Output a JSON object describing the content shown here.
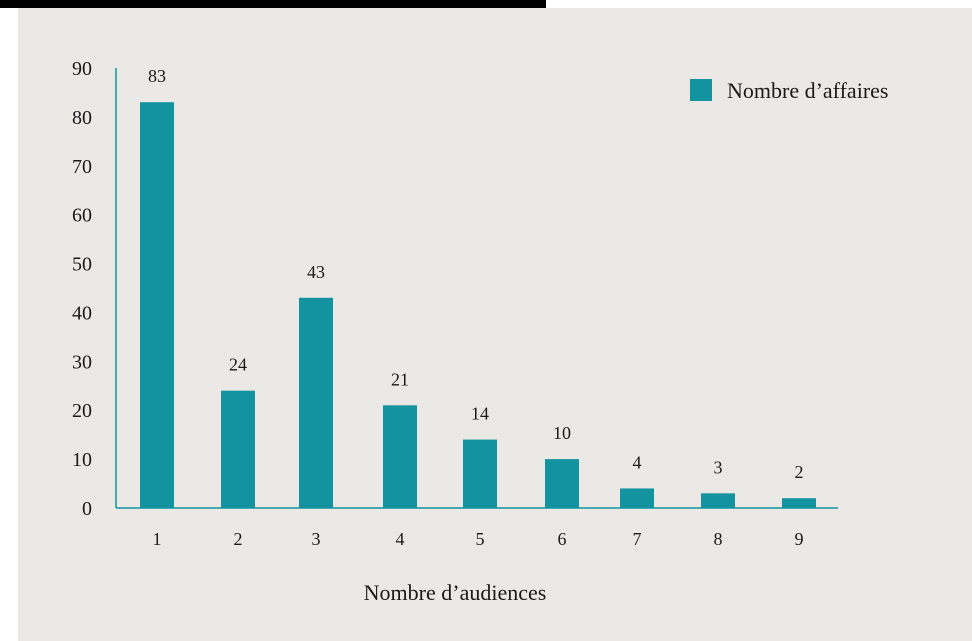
{
  "colors": {
    "background": "#ebe9e6",
    "bar": "#13929f",
    "axis": "#13929f",
    "topbar": "#000000"
  },
  "chart_data": {
    "type": "bar",
    "categories": [
      "1",
      "2",
      "3",
      "4",
      "5",
      "6",
      "7",
      "8",
      "9"
    ],
    "series": [
      {
        "name": "Nombre d’affaires",
        "values": [
          83,
          24,
          43,
          21,
          14,
          10,
          4,
          3,
          2
        ]
      }
    ],
    "xlabel": "Nombre d’audiences",
    "ylabel": "",
    "ylim": [
      0,
      90
    ],
    "yticks": [
      "0",
      "10",
      "20",
      "30",
      "40",
      "50",
      "60",
      "70",
      "80",
      "90"
    ],
    "data_labels": [
      "83",
      "24",
      "43",
      "21",
      "14",
      "10",
      "4",
      "3",
      "2"
    ],
    "grid": false,
    "legend": "top-right"
  }
}
